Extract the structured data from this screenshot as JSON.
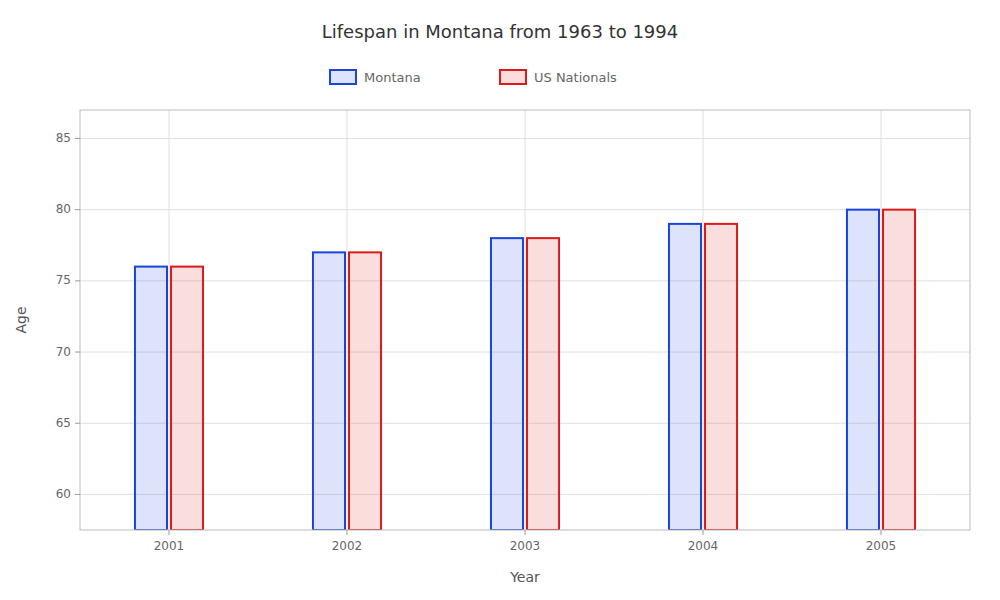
{
  "chart_data": {
    "type": "bar",
    "title": "Lifespan in Montana from 1963 to 1994",
    "x_label": "Year",
    "y_label": "Age",
    "categories": [
      2001,
      2002,
      2003,
      2004,
      2005
    ],
    "series": [
      {
        "name": "Montana",
        "color": "#1a44dd",
        "values": [
          76,
          77,
          78,
          79,
          80
        ]
      },
      {
        "name": "US Nationals",
        "color": "#dd1a1a",
        "values": [
          76,
          77,
          78,
          79,
          80
        ]
      }
    ],
    "ylim": [
      57.5,
      87
    ],
    "yticks": [
      60,
      65,
      70,
      75,
      80,
      85
    ],
    "grid": true,
    "legend": "top"
  }
}
